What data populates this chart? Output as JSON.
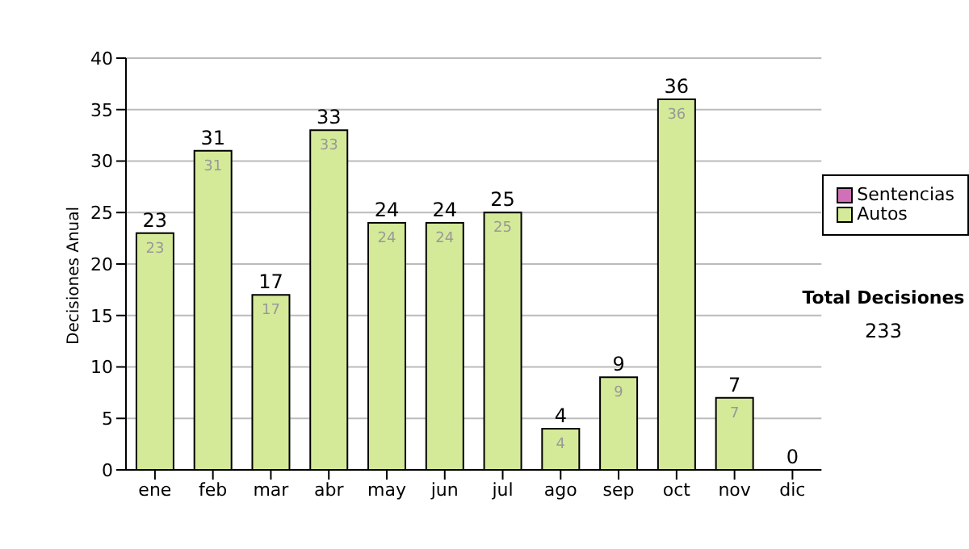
{
  "chart_data": {
    "type": "bar",
    "stacked": true,
    "ylabel": "Decisiones Anual",
    "categories": [
      "ene",
      "feb",
      "mar",
      "abr",
      "may",
      "jun",
      "jul",
      "ago",
      "sep",
      "oct",
      "nov",
      "dic"
    ],
    "series": [
      {
        "name": "Sentencias",
        "color": "#d070b8",
        "values": [
          0,
          0,
          0,
          0,
          0,
          0,
          0,
          0,
          0,
          0,
          0,
          0
        ]
      },
      {
        "name": "Autos",
        "color": "#d4ea98",
        "values": [
          23,
          31,
          17,
          33,
          24,
          24,
          25,
          4,
          9,
          36,
          7,
          0
        ],
        "value_labels": [
          "23",
          "31",
          "17",
          "33",
          "24",
          "24",
          "25",
          "4",
          "9",
          "36",
          "7",
          null
        ]
      }
    ],
    "totals": [
      "23",
      "31",
      "17",
      "33",
      "24",
      "24",
      "25",
      "4",
      "9",
      "36",
      "7",
      "0"
    ],
    "ylim": [
      0,
      40
    ],
    "yticks": [
      0,
      5,
      10,
      15,
      20,
      25,
      30,
      35,
      40
    ],
    "grid": "y",
    "legend": "right",
    "annotations": [
      "Total Decisiones",
      "233"
    ]
  }
}
